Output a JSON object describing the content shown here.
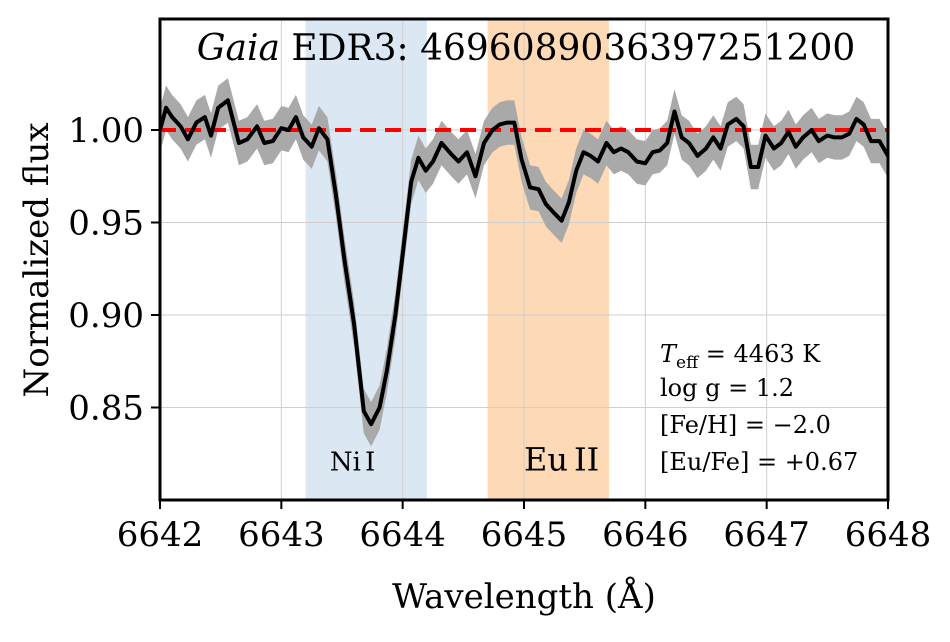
{
  "chart_data": {
    "type": "line",
    "title_italic": "Gaia",
    "title_rest": " EDR3: 4696089036397251200",
    "xlabel": "Wavelength (Å)",
    "ylabel": "Normalized flux",
    "xlim": [
      6642,
      6648
    ],
    "ylim": [
      0.8,
      1.06
    ],
    "xticks": [
      6642,
      6643,
      6644,
      6645,
      6646,
      6647,
      6648
    ],
    "xtick_labels": [
      "6642",
      "6643",
      "6644",
      "6645",
      "6646",
      "6647",
      "6648"
    ],
    "yticks": [
      0.85,
      0.9,
      0.95,
      1.0
    ],
    "ytick_labels": [
      "0.85",
      "0.90",
      "0.95",
      "1.00"
    ],
    "grid": true,
    "continuum_level": 1.0,
    "continuum_color": "#ff0000",
    "line_color": "#000000",
    "error_band_color": "#a9a9a9",
    "error_width": 0.012,
    "bands": [
      {
        "name": "Ni I",
        "label_main": "Ni",
        "label_ion": "I",
        "x_start": 6643.2,
        "x_end": 6644.2,
        "color": "#dbe8f4",
        "label_x": 6643.4,
        "label_y": 0.822,
        "size": "small"
      },
      {
        "name": "Eu II",
        "label_main": "Eu",
        "label_ion": "II",
        "x_start": 6644.7,
        "x_end": 6645.7,
        "color": "#fdd9b5",
        "label_x": 6645.0,
        "label_y": 0.822,
        "size": "large"
      }
    ],
    "series": [
      {
        "name": "spectrum",
        "points": [
          [
            6642.0,
            1.0
          ],
          [
            6642.05,
            1.012
          ],
          [
            6642.1,
            1.007
          ],
          [
            6642.17,
            1.002
          ],
          [
            6642.23,
            0.995
          ],
          [
            6642.3,
            1.004
          ],
          [
            6642.37,
            1.007
          ],
          [
            6642.42,
            0.997
          ],
          [
            6642.48,
            1.012
          ],
          [
            6642.56,
            1.016
          ],
          [
            6642.65,
            0.993
          ],
          [
            6642.72,
            0.995
          ],
          [
            6642.8,
            1.002
          ],
          [
            6642.86,
            0.993
          ],
          [
            6642.93,
            0.994
          ],
          [
            6643.0,
            1.001
          ],
          [
            6643.06,
            1.0
          ],
          [
            6643.12,
            1.007
          ],
          [
            6643.18,
            0.996
          ],
          [
            6643.25,
            0.991
          ],
          [
            6643.31,
            1.001
          ],
          [
            6643.38,
            0.995
          ],
          [
            6643.45,
            0.965
          ],
          [
            6643.52,
            0.93
          ],
          [
            6643.6,
            0.895
          ],
          [
            6643.68,
            0.848
          ],
          [
            6643.74,
            0.841
          ],
          [
            6643.81,
            0.85
          ],
          [
            6643.87,
            0.87
          ],
          [
            6643.94,
            0.9
          ],
          [
            6644.0,
            0.933
          ],
          [
            6644.07,
            0.972
          ],
          [
            6644.13,
            0.985
          ],
          [
            6644.19,
            0.978
          ],
          [
            6644.25,
            0.983
          ],
          [
            6644.32,
            0.993
          ],
          [
            6644.4,
            0.987
          ],
          [
            6644.46,
            0.983
          ],
          [
            6644.53,
            0.988
          ],
          [
            6644.6,
            0.975
          ],
          [
            6644.67,
            0.993
          ],
          [
            6644.74,
            1.0
          ],
          [
            6644.8,
            1.003
          ],
          [
            6644.86,
            1.004
          ],
          [
            6644.92,
            1.004
          ],
          [
            6644.98,
            0.984
          ],
          [
            6645.05,
            0.969
          ],
          [
            6645.12,
            0.968
          ],
          [
            6645.18,
            0.96
          ],
          [
            6645.25,
            0.955
          ],
          [
            6645.31,
            0.951
          ],
          [
            6645.37,
            0.961
          ],
          [
            6645.43,
            0.978
          ],
          [
            6645.49,
            0.988
          ],
          [
            6645.55,
            0.986
          ],
          [
            6645.61,
            0.983
          ],
          [
            6645.68,
            0.993
          ],
          [
            6645.74,
            0.988
          ],
          [
            6645.8,
            0.99
          ],
          [
            6645.86,
            0.988
          ],
          [
            6645.93,
            0.983
          ],
          [
            6646.0,
            0.982
          ],
          [
            6646.06,
            0.988
          ],
          [
            6646.12,
            0.989
          ],
          [
            6646.18,
            0.993
          ],
          [
            6646.24,
            1.01
          ],
          [
            6646.3,
            0.996
          ],
          [
            6646.36,
            0.993
          ],
          [
            6646.43,
            0.986
          ],
          [
            6646.5,
            0.99
          ],
          [
            6646.56,
            0.996
          ],
          [
            6646.62,
            0.99
          ],
          [
            6646.68,
            1.003
          ],
          [
            6646.75,
            1.006
          ],
          [
            6646.81,
            1.002
          ],
          [
            6646.87,
            0.98
          ],
          [
            6646.93,
            0.98
          ],
          [
            6646.99,
            0.997
          ],
          [
            6647.06,
            0.99
          ],
          [
            6647.12,
            0.993
          ],
          [
            6647.18,
            0.999
          ],
          [
            6647.24,
            0.991
          ],
          [
            6647.3,
            0.996
          ],
          [
            6647.37,
            1.0
          ],
          [
            6647.43,
            0.994
          ],
          [
            6647.5,
            0.997
          ],
          [
            6647.56,
            0.996
          ],
          [
            6647.62,
            0.996
          ],
          [
            6647.68,
            0.998
          ],
          [
            6647.74,
            1.006
          ],
          [
            6647.8,
            1.003
          ],
          [
            6647.86,
            0.994
          ],
          [
            6647.93,
            0.994
          ],
          [
            6648.0,
            0.986
          ]
        ]
      }
    ],
    "annotations": [
      {
        "id": "teff",
        "sym": "T",
        "sub": "eff",
        "rest": " = 4463 K"
      },
      {
        "id": "logg",
        "text": "log g = 1.2"
      },
      {
        "id": "feh",
        "text": "[Fe/H] = −2.0"
      },
      {
        "id": "eufe",
        "text": "[Eu/Fe] = +0.67"
      }
    ]
  }
}
